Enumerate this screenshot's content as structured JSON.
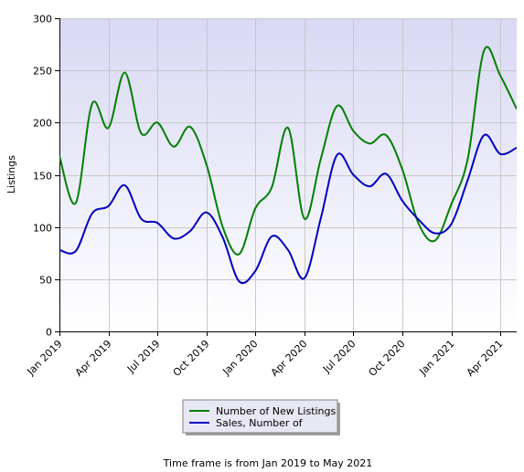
{
  "chart_data": {
    "type": "line",
    "ylabel": "Listings",
    "ylim": [
      0,
      300
    ],
    "yticks": [
      0,
      50,
      100,
      150,
      200,
      250,
      300
    ],
    "x": [
      "Jan 2019",
      "Feb 2019",
      "Mar 2019",
      "Apr 2019",
      "May 2019",
      "Jun 2019",
      "Jul 2019",
      "Aug 2019",
      "Sep 2019",
      "Oct 2019",
      "Nov 2019",
      "Dec 2019",
      "Jan 2020",
      "Feb 2020",
      "Mar 2020",
      "Apr 2020",
      "May 2020",
      "Jun 2020",
      "Jul 2020",
      "Aug 2020",
      "Sep 2020",
      "Oct 2020",
      "Nov 2020",
      "Dec 2020",
      "Jan 2021",
      "Feb 2021",
      "Mar 2021",
      "Apr 2021",
      "May 2021"
    ],
    "xtick_labels": [
      "Jan 2019",
      "Apr 2019",
      "Jul 2019",
      "Oct 2019",
      "Jan 2020",
      "Apr 2020",
      "Jul 2020",
      "Oct 2020",
      "Jan 2021",
      "Apr 2021"
    ],
    "series": [
      {
        "name": "Number of New Listings",
        "color": "#008000",
        "values": [
          168,
          123,
          218,
          195,
          248,
          190,
          200,
          177,
          196,
          160,
          100,
          74,
          118,
          138,
          195,
          108,
          165,
          216,
          192,
          180,
          188,
          155,
          103,
          87,
          122,
          165,
          269,
          245,
          213
        ]
      },
      {
        "name": "Sales, Number of",
        "color": "#0000c0",
        "values": [
          78,
          77,
          113,
          120,
          140,
          108,
          104,
          89,
          96,
          114,
          90,
          48,
          58,
          91,
          78,
          51,
          108,
          169,
          150,
          139,
          151,
          125,
          107,
          94,
          103,
          145,
          188,
          170,
          176
        ]
      }
    ],
    "grid": true,
    "legend": "bottom-center",
    "footer": "Time frame is from Jan 2019 to May 2021"
  }
}
